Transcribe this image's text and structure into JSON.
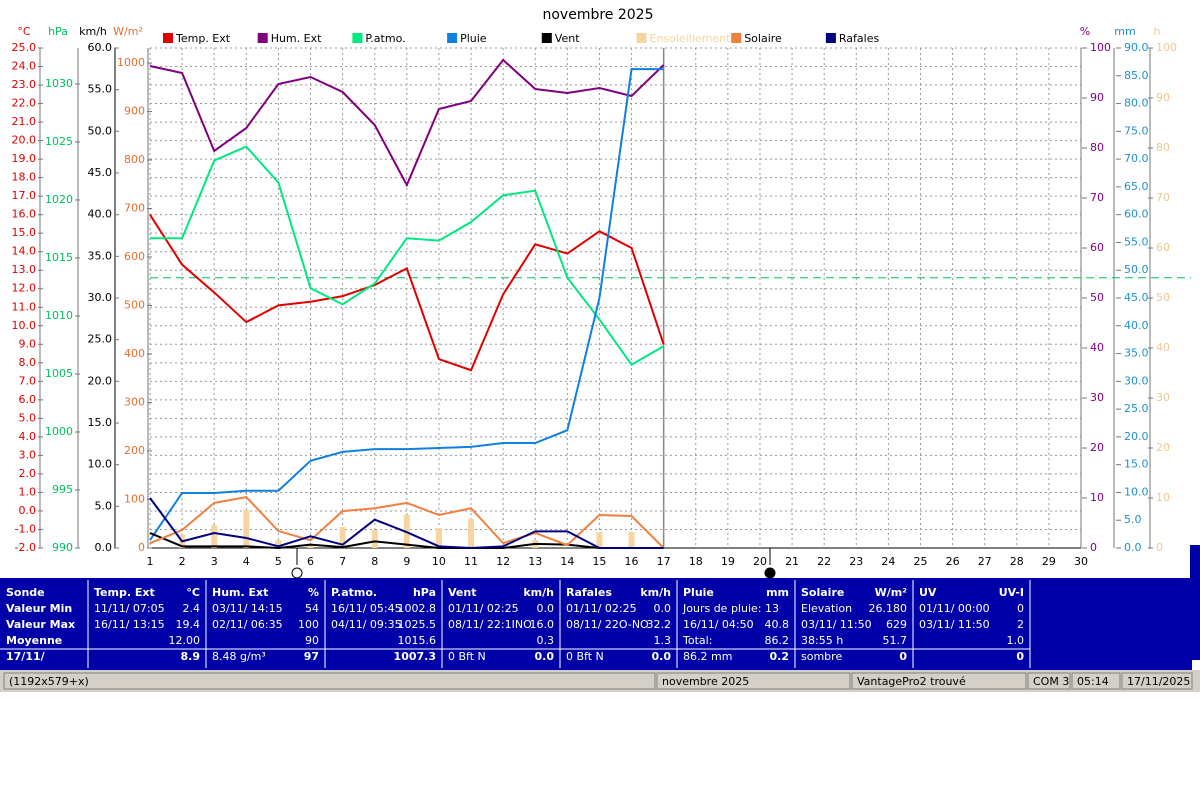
{
  "chart_data": {
    "type": "line",
    "title": "novembre 2025",
    "x": [
      1,
      2,
      3,
      4,
      5,
      6,
      7,
      8,
      9,
      10,
      11,
      12,
      13,
      14,
      15,
      16,
      17,
      18,
      19,
      20,
      21,
      22,
      23,
      24,
      25,
      26,
      27,
      28,
      29,
      30
    ],
    "xlim": [
      1,
      30
    ],
    "grid": true,
    "axes": {
      "temp": {
        "unit": "°C",
        "color": "#e00000",
        "lim": [
          -2,
          25
        ],
        "ticks": [
          {
            "value": -2,
            "label": "-2.0"
          },
          {
            "value": -1,
            "label": "-1.0"
          },
          {
            "value": 0,
            "label": "0.0"
          },
          {
            "value": 1,
            "label": "1.0"
          },
          {
            "value": 2,
            "label": "2.0"
          },
          {
            "value": 3,
            "label": "3.0"
          },
          {
            "value": 4,
            "label": "4.0"
          },
          {
            "value": 5,
            "label": "5.0"
          },
          {
            "value": 6,
            "label": "6.0"
          },
          {
            "value": 7,
            "label": "7.0"
          },
          {
            "value": 8,
            "label": "8.0"
          },
          {
            "value": 9,
            "label": "9.0"
          },
          {
            "value": 10,
            "label": "10.0"
          },
          {
            "value": 11,
            "label": "11.0"
          },
          {
            "value": 12,
            "label": "12.0"
          },
          {
            "value": 13,
            "label": "13.0"
          },
          {
            "value": 14,
            "label": "14.0"
          },
          {
            "value": 15,
            "label": "15.0"
          },
          {
            "value": 16,
            "label": "16.0"
          },
          {
            "value": 17,
            "label": "17.0"
          },
          {
            "value": 18,
            "label": "18.0"
          },
          {
            "value": 19,
            "label": "19.0"
          },
          {
            "value": 20,
            "label": "20.0"
          },
          {
            "value": 21,
            "label": "21.0"
          },
          {
            "value": 22,
            "label": "22.0"
          },
          {
            "value": 23,
            "label": "23.0"
          },
          {
            "value": 24,
            "label": "24.0"
          },
          {
            "value": 25,
            "label": "25.0"
          }
        ]
      },
      "hpa": {
        "unit": "hPa",
        "color": "#00c060",
        "lim": [
          990,
          1033.1
        ],
        "ticks": [
          990,
          995,
          1000,
          1005,
          1010,
          1015,
          1020,
          1025,
          1030
        ]
      },
      "kmh": {
        "unit": "km/h",
        "color": "#000000",
        "lim": [
          0,
          60
        ],
        "ticks": [
          {
            "value": 0,
            "label": "0.0"
          },
          {
            "value": 5,
            "label": "5.0"
          },
          {
            "value": 10,
            "label": "10.0"
          },
          {
            "value": 15,
            "label": "15.0"
          },
          {
            "value": 20,
            "label": "20.0"
          },
          {
            "value": 25,
            "label": "25.0"
          },
          {
            "value": 30,
            "label": "30.0"
          },
          {
            "value": 35,
            "label": "35.0"
          },
          {
            "value": 40,
            "label": "40.0"
          },
          {
            "value": 45,
            "label": "45.0"
          },
          {
            "value": 50,
            "label": "50.0"
          },
          {
            "value": 55,
            "label": "55.0"
          },
          {
            "value": 60,
            "label": "60.0"
          }
        ]
      },
      "wm2": {
        "unit": "W/m²",
        "color": "#e07030",
        "lim": [
          0,
          1031
        ],
        "ticks": [
          0,
          100,
          200,
          300,
          400,
          500,
          600,
          700,
          800,
          900,
          1000
        ]
      },
      "pct": {
        "unit": "%",
        "color": "#800080",
        "lim": [
          0,
          100
        ],
        "ticks": [
          0,
          10,
          20,
          30,
          40,
          50,
          60,
          70,
          80,
          90,
          100
        ]
      },
      "mm": {
        "unit": "mm",
        "color": "#2090d0",
        "lim": [
          0,
          90
        ],
        "ticks": [
          {
            "value": 0,
            "label": "0.0"
          },
          {
            "value": 5,
            "label": "5.0"
          },
          {
            "value": 10,
            "label": "10.0"
          },
          {
            "value": 15,
            "label": "15.0"
          },
          {
            "value": 20,
            "label": "20.0"
          },
          {
            "value": 25,
            "label": "25.0"
          },
          {
            "value": 30,
            "label": "30.0"
          },
          {
            "value": 35,
            "label": "35.0"
          },
          {
            "value": 40,
            "label": "40.0"
          },
          {
            "value": 45,
            "label": "45.0"
          },
          {
            "value": 50,
            "label": "50.0"
          },
          {
            "value": 55,
            "label": "55.0"
          },
          {
            "value": 60,
            "label": "60.0"
          },
          {
            "value": 65,
            "label": "65.0"
          },
          {
            "value": 70,
            "label": "70.0"
          },
          {
            "value": 75,
            "label": "75.0"
          },
          {
            "value": 80,
            "label": "80.0"
          },
          {
            "value": 85,
            "label": "85.0"
          },
          {
            "value": 90,
            "label": "90.0"
          }
        ]
      },
      "h": {
        "unit": "h",
        "color": "#f0c890",
        "lim": [
          0,
          100
        ],
        "ticks": [
          0,
          10,
          20,
          30,
          40,
          50,
          60,
          70,
          80,
          90,
          100
        ]
      }
    },
    "reference_lines": [
      {
        "axis": "hpa",
        "value": 1013.3,
        "color": "#00c060"
      }
    ],
    "series": [
      {
        "name": "Temp. Ext",
        "color": "#e00000",
        "axis": "temp",
        "values": [
          16.0,
          13.3,
          11.8,
          10.2,
          11.1,
          11.3,
          11.6,
          12.2,
          13.1,
          8.2,
          7.6,
          11.7,
          14.4,
          13.9,
          15.1,
          14.2,
          9.0,
          null,
          null,
          null,
          null,
          null,
          null,
          null,
          null,
          null,
          null,
          null,
          null,
          null
        ]
      },
      {
        "name": "Hum. Ext",
        "color": "#800080",
        "axis": "pct",
        "values": [
          96.4,
          95.0,
          79.4,
          84.0,
          92.8,
          94.2,
          91.2,
          84.6,
          72.6,
          87.8,
          89.4,
          97.6,
          91.8,
          91.0,
          92.0,
          90.4,
          96.6,
          null,
          null,
          null,
          null,
          null,
          null,
          null,
          null,
          null,
          null,
          null,
          null,
          null
        ]
      },
      {
        "name": "P.atmo.",
        "color": "#00e880",
        "axis": "hpa",
        "values": [
          1016.7,
          1016.7,
          1023.4,
          1024.6,
          1021.5,
          1012.4,
          1011.0,
          1012.8,
          1016.7,
          1016.5,
          1018.1,
          1020.4,
          1020.8,
          1013.3,
          1009.7,
          1005.8,
          1007.4,
          null,
          null,
          null,
          null,
          null,
          null,
          null,
          null,
          null,
          null,
          null,
          null,
          null
        ]
      },
      {
        "name": "Pluie",
        "color": "#1080e0",
        "axis": "mm",
        "values": [
          1.4,
          9.9,
          9.9,
          10.3,
          10.3,
          15.7,
          17.3,
          17.8,
          17.8,
          18.0,
          18.2,
          18.9,
          18.9,
          21.2,
          45.0,
          86.2,
          86.2,
          null,
          null,
          null,
          null,
          null,
          null,
          null,
          null,
          null,
          null,
          null,
          null,
          null
        ]
      },
      {
        "name": "Vent",
        "color": "#000000",
        "axis": "kmh",
        "values": [
          1.8,
          0.2,
          0.2,
          0.2,
          0,
          0.4,
          0.1,
          0.8,
          0.4,
          0,
          0,
          0,
          0.5,
          0.4,
          0,
          0,
          0,
          null,
          null,
          null,
          null,
          null,
          null,
          null,
          null,
          null,
          null,
          null,
          null,
          null
        ]
      },
      {
        "name": "Ensoleillement",
        "color": "#f5d5a0",
        "axis": "h",
        "type": "bar",
        "values": [
          0,
          2.6,
          4.6,
          7.6,
          1.6,
          0.6,
          4.2,
          3.6,
          6.6,
          4.0,
          5.8,
          0,
          1.6,
          0,
          3.2,
          3.2,
          0,
          null,
          null,
          null,
          null,
          null,
          null,
          null,
          null,
          null,
          null,
          null,
          null,
          null
        ]
      },
      {
        "name": "Solaire",
        "color": "#f08040",
        "axis": "wm2",
        "values": [
          10,
          37,
          93,
          105,
          35,
          16,
          76,
          82,
          93,
          68,
          82,
          10,
          31,
          6,
          68,
          66,
          0,
          null,
          null,
          null,
          null,
          null,
          null,
          null,
          null,
          null,
          null,
          null,
          null,
          null
        ]
      },
      {
        "name": "Rafales",
        "color": "#000080",
        "axis": "kmh",
        "values": [
          6.0,
          0.8,
          1.8,
          1.2,
          0.2,
          1.4,
          0.4,
          3.4,
          1.9,
          0.2,
          0,
          0.2,
          2.0,
          2.0,
          0,
          0,
          0,
          null,
          null,
          null,
          null,
          null,
          null,
          null,
          null,
          null,
          null,
          null,
          null,
          null
        ]
      }
    ]
  },
  "stats": [
    {
      "title": "Sonde",
      "rows": [
        "Valeur Min",
        "Valeur Max",
        "Moyenne",
        "17/11/"
      ]
    },
    {
      "title": "Temp. Ext",
      "unit": "°C",
      "rows": [
        [
          "11/11/ 07:05",
          "2.4"
        ],
        [
          "16/11/ 13:15",
          "19.4"
        ],
        [
          null,
          "12.00"
        ],
        [
          null,
          "8.9"
        ]
      ]
    },
    {
      "title": "Hum. Ext",
      "unit": "%",
      "rows": [
        [
          "03/11/ 14:15",
          "54"
        ],
        [
          "02/11/ 06:35",
          "100"
        ],
        [
          null,
          "90"
        ],
        [
          "8.48 g/m³",
          "97"
        ]
      ]
    },
    {
      "title": "P.atmo.",
      "unit": "hPa",
      "rows": [
        [
          "16/11/ 05:45",
          "1002.8"
        ],
        [
          "04/11/ 09:35",
          "1025.5"
        ],
        [
          null,
          "1015.6"
        ],
        [
          null,
          "1007.3"
        ]
      ]
    },
    {
      "title": "Vent",
      "unit": "km/h",
      "rows": [
        [
          "01/11/ 02:25",
          "0.0"
        ],
        [
          "08/11/ 22:1INO",
          "16.0"
        ],
        [
          null,
          "0.3"
        ],
        [
          "0 Bft N",
          "0.0"
        ]
      ]
    },
    {
      "title": "Rafales",
      "unit": "km/h",
      "rows": [
        [
          "01/11/ 02:25",
          "0.0"
        ],
        [
          "08/11/ 22O-NO",
          "32.2"
        ],
        [
          null,
          "1.3"
        ],
        [
          "0 Bft N",
          "0.0"
        ]
      ]
    },
    {
      "title": "Pluie",
      "unit": "mm",
      "rows": [
        [
          "Jours de pluie: 13",
          null
        ],
        [
          "16/11/ 04:50",
          "40.8"
        ],
        [
          "Total:",
          "86.2"
        ],
        [
          "86.2 mm",
          "0.2"
        ]
      ]
    },
    {
      "title": "Solaire",
      "unit": "W/m²",
      "rows": [
        [
          "Elevation",
          "26.180"
        ],
        [
          "03/11/ 11:50",
          "629"
        ],
        [
          "38:55 h",
          "51.7"
        ],
        [
          "sombre",
          "0"
        ]
      ]
    },
    {
      "title": "UV",
      "unit": "UV-I",
      "rows": [
        [
          "01/11/ 00:00",
          "0"
        ],
        [
          "03/11/ 11:50",
          "2"
        ],
        [
          null,
          "1.0"
        ],
        [
          null,
          "0"
        ]
      ]
    }
  ],
  "status_bar": [
    "(1192x579+x)",
    "novembre 2025",
    "VantagePro2 trouvé",
    "COM 3",
    "05:14",
    "17/11/2025"
  ]
}
